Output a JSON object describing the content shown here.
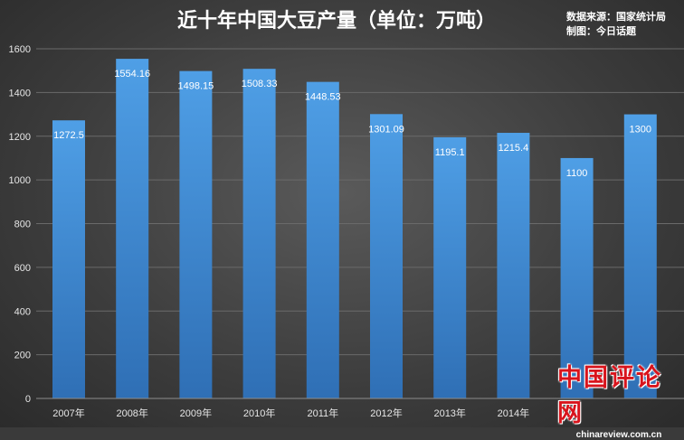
{
  "title": "近十年中国大豆产量（单位：万吨）",
  "source_lines": [
    "数据来源：国家统计局",
    "制图：今日话题"
  ],
  "watermark": {
    "main": "中国评论网",
    "sub": "chinareview.com.cn"
  },
  "colors": {
    "bar_top": "#4f9fe6",
    "bar_bottom": "#2f6fb5",
    "background": "#3c3c3c"
  },
  "chart_data": {
    "type": "bar",
    "title": "近十年中国大豆产量（单位：万吨）",
    "categories": [
      "2007年",
      "2008年",
      "2009年",
      "2010年",
      "2011年",
      "2012年",
      "2013年",
      "2014年",
      "",
      ""
    ],
    "values": [
      1272.5,
      1554.16,
      1498.15,
      1508.33,
      1448.53,
      1301.09,
      1195.1,
      1215.4,
      1100,
      1300
    ],
    "data_labels": [
      "1272.5",
      "1554.16",
      "1498.15",
      "1508.33",
      "1448.53",
      "1301.09",
      "1195.1",
      "1215.4",
      "1100",
      "1300"
    ],
    "y_ticks": [
      0,
      200,
      400,
      600,
      800,
      1000,
      1200,
      1400,
      1600
    ],
    "ylim": [
      0,
      1600
    ],
    "grid": true,
    "legend": "none"
  }
}
